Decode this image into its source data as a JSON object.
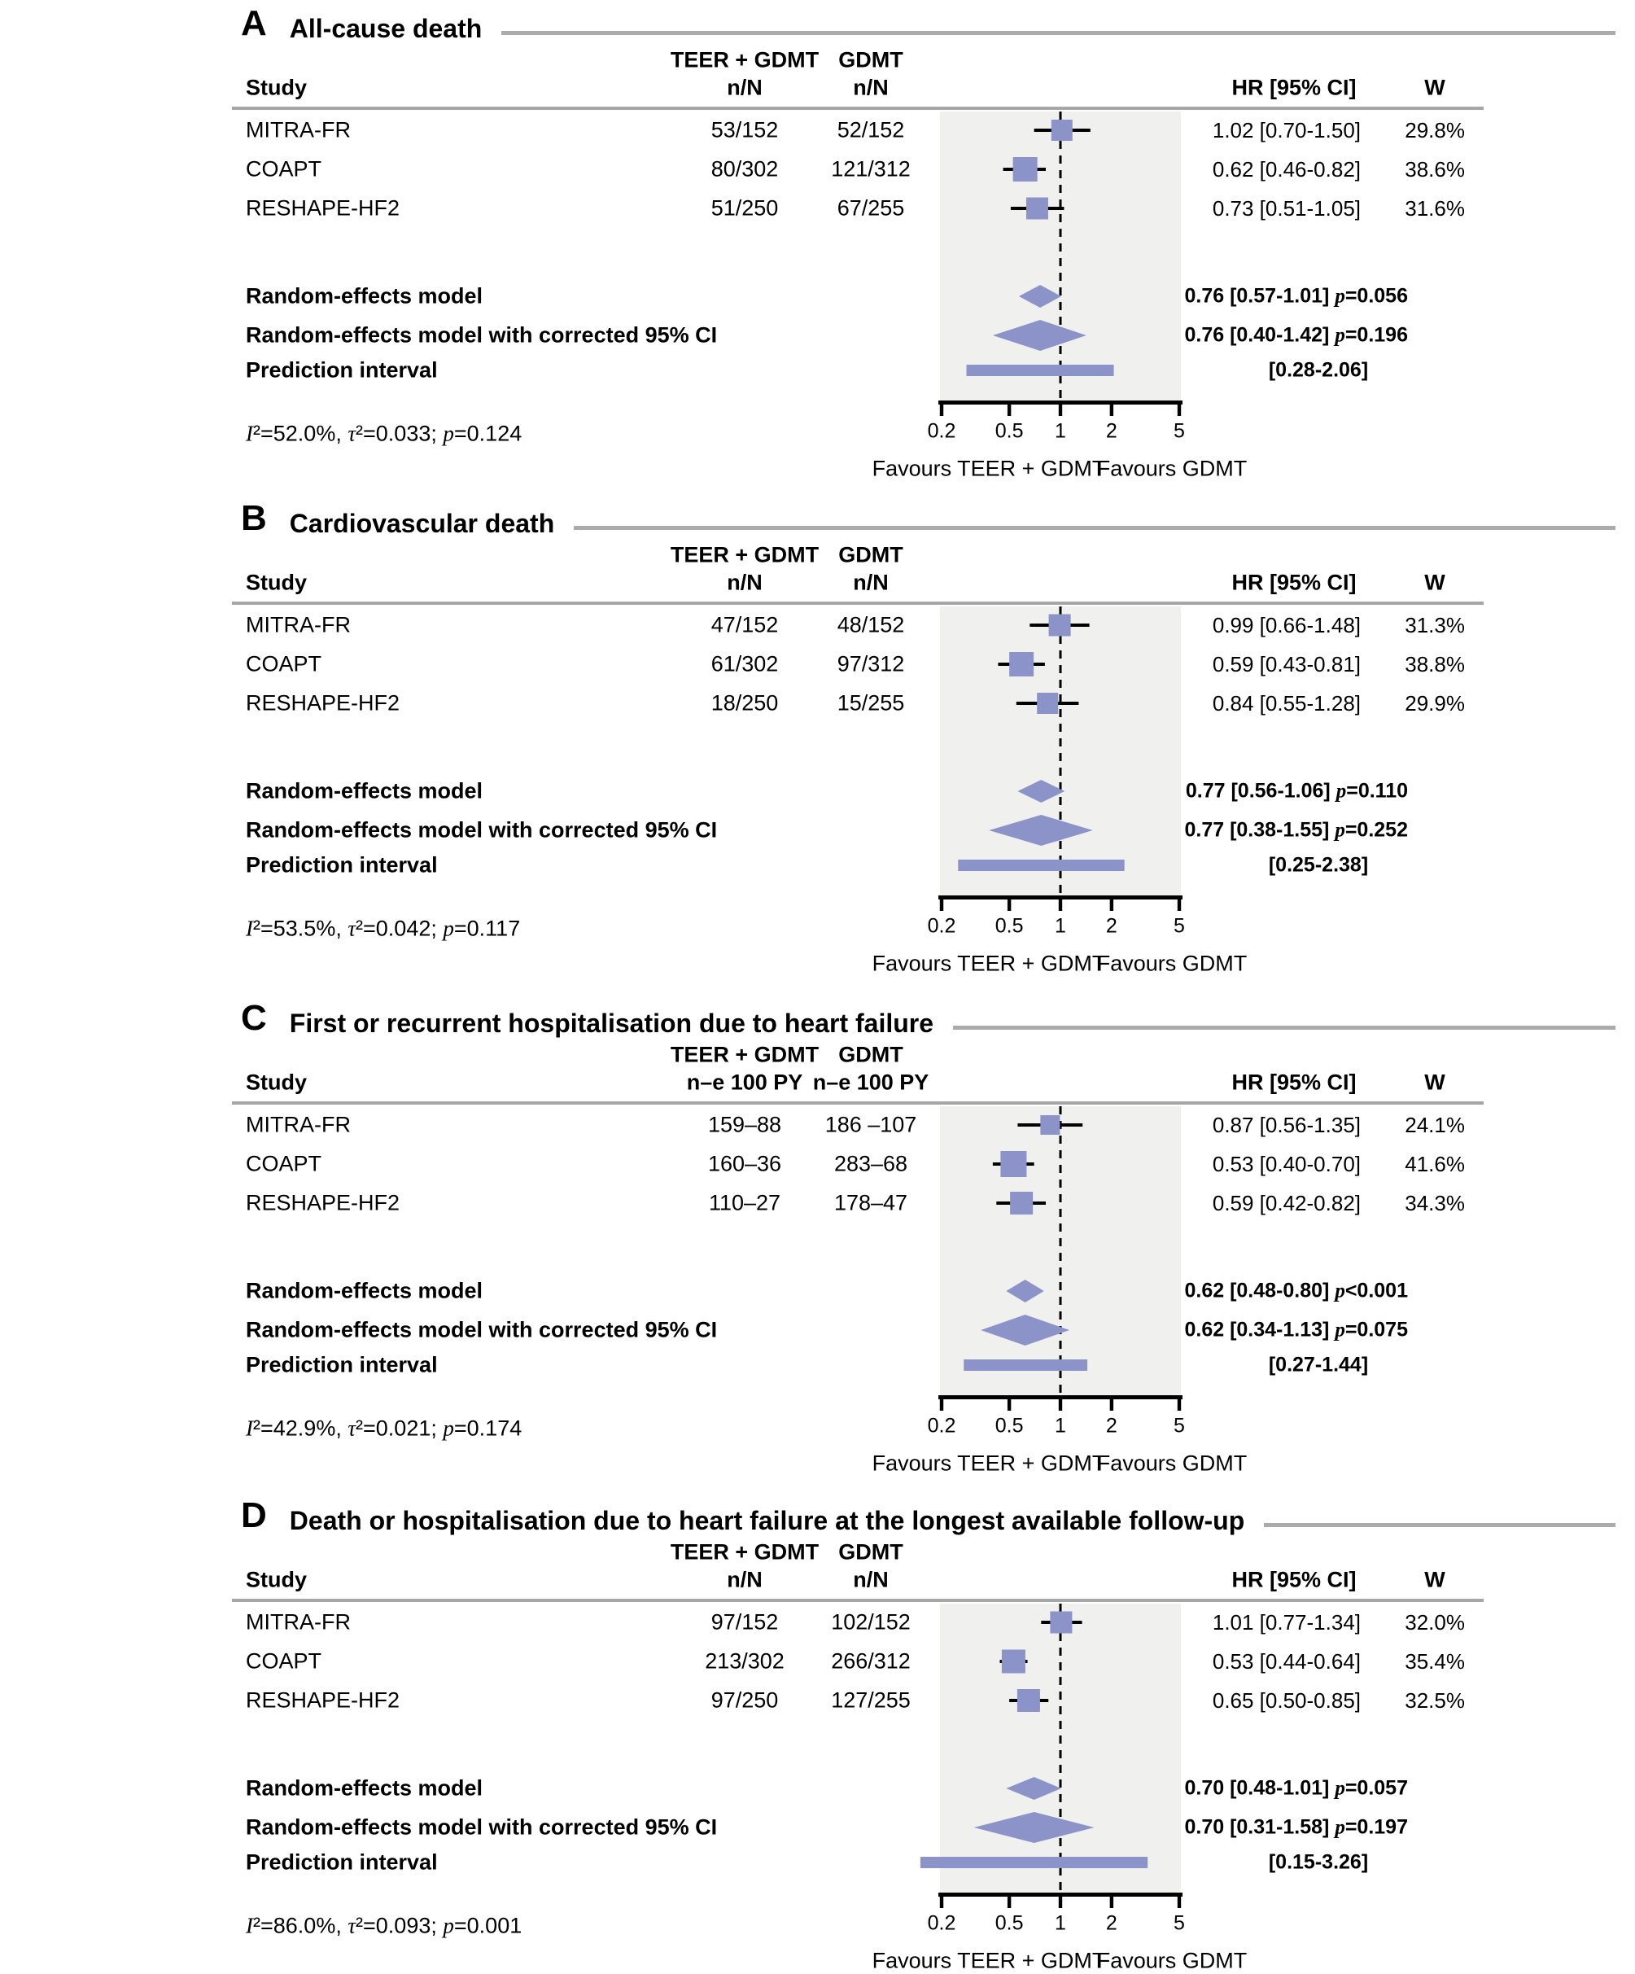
{
  "shared": {
    "study_header": "Study",
    "group1_header": "TEER + GDMT",
    "group2_header": "GDMT",
    "hr_header": "HR [95% CI]",
    "weight_header": "W",
    "rem_label": "Random-effects model",
    "rem_corr_label": "Random-effects model with corrected 95% CI",
    "pred_label": "Prediction interval",
    "favours_left": "Favours TEER + GDMT",
    "favours_right": "Favours GDMT",
    "sym_I": "I",
    "sym_tau": "τ",
    "sym_p": "p",
    "sup_eq": "²=",
    "comma": ", ",
    "semi": "; ",
    "space": " ",
    "colors": {
      "marker": "#8b93c8",
      "plot_background": "#f0f0ee",
      "rule_gray": "#a6a6a6",
      "axis_black": "#000000"
    }
  },
  "chart_data": {
    "type": "forest",
    "x_scale": "log",
    "x_ticks": [
      0.2,
      0.5,
      1,
      2,
      5
    ],
    "x_tick_labels": [
      "0.2",
      "0.5",
      "1",
      "2",
      "5"
    ],
    "null_line": 1,
    "panels": [
      {
        "letter": "A",
        "title": "All-cause death",
        "unit_label": "n/N",
        "rows": [
          {
            "study": "MITRA-FR",
            "g1": "53/152",
            "g2": "52/152",
            "hr": 1.02,
            "lo": 0.7,
            "hi": 1.5,
            "hr_text": "1.02 [0.70-1.50]",
            "w": "29.8%",
            "weight": 29.8
          },
          {
            "study": "COAPT",
            "g1": "80/302",
            "g2": "121/312",
            "hr": 0.62,
            "lo": 0.46,
            "hi": 0.82,
            "hr_text": "0.62 [0.46-0.82]",
            "w": "38.6%",
            "weight": 38.6
          },
          {
            "study": "RESHAPE-HF2",
            "g1": "51/250",
            "g2": "67/255",
            "hr": 0.73,
            "lo": 0.51,
            "hi": 1.05,
            "hr_text": "0.73 [0.51-1.05]",
            "w": "31.6%",
            "weight": 31.6
          }
        ],
        "rem": {
          "hr": 0.76,
          "lo": 0.57,
          "hi": 1.01,
          "text": "0.76 [0.57-1.01]",
          "p": "=0.056"
        },
        "rem_corr": {
          "hr": 0.76,
          "lo": 0.4,
          "hi": 1.42,
          "text": "0.76 [0.40-1.42]",
          "p": "=0.196"
        },
        "pred": {
          "lo": 0.28,
          "hi": 2.06,
          "text": "[0.28-2.06]"
        },
        "het": {
          "i2": "52.0%",
          "tau2": "0.033",
          "p": "0.124"
        }
      },
      {
        "letter": "B",
        "title": "Cardiovascular death",
        "unit_label": "n/N",
        "rows": [
          {
            "study": "MITRA-FR",
            "g1": "47/152",
            "g2": "48/152",
            "hr": 0.99,
            "lo": 0.66,
            "hi": 1.48,
            "hr_text": "0.99 [0.66-1.48]",
            "w": "31.3%",
            "weight": 31.3
          },
          {
            "study": "COAPT",
            "g1": "61/302",
            "g2": "97/312",
            "hr": 0.59,
            "lo": 0.43,
            "hi": 0.81,
            "hr_text": "0.59 [0.43-0.81]",
            "w": "38.8%",
            "weight": 38.8
          },
          {
            "study": "RESHAPE-HF2",
            "g1": "18/250",
            "g2": "15/255",
            "hr": 0.84,
            "lo": 0.55,
            "hi": 1.28,
            "hr_text": "0.84 [0.55-1.28]",
            "w": "29.9%",
            "weight": 29.9
          }
        ],
        "rem": {
          "hr": 0.77,
          "lo": 0.56,
          "hi": 1.06,
          "text": "0.77 [0.56-1.06]",
          "p": "=0.110"
        },
        "rem_corr": {
          "hr": 0.77,
          "lo": 0.38,
          "hi": 1.55,
          "text": "0.77 [0.38-1.55]",
          "p": "=0.252"
        },
        "pred": {
          "lo": 0.25,
          "hi": 2.38,
          "text": "[0.25-2.38]"
        },
        "het": {
          "i2": "53.5%",
          "tau2": "0.042",
          "p": "0.117"
        }
      },
      {
        "letter": "C",
        "title": "First or recurrent hospitalisation due to heart failure",
        "unit_label": "n–e 100 PY",
        "rows": [
          {
            "study": "MITRA-FR",
            "g1": "159–88",
            "g2": "186 –107",
            "hr": 0.87,
            "lo": 0.56,
            "hi": 1.35,
            "hr_text": "0.87 [0.56-1.35]",
            "w": "24.1%",
            "weight": 24.1
          },
          {
            "study": "COAPT",
            "g1": "160–36",
            "g2": "283–68",
            "hr": 0.53,
            "lo": 0.4,
            "hi": 0.7,
            "hr_text": "0.53 [0.40-0.70]",
            "w": "41.6%",
            "weight": 41.6
          },
          {
            "study": "RESHAPE-HF2",
            "g1": "110–27",
            "g2": "178–47",
            "hr": 0.59,
            "lo": 0.42,
            "hi": 0.82,
            "hr_text": "0.59 [0.42-0.82]",
            "w": "34.3%",
            "weight": 34.3
          }
        ],
        "rem": {
          "hr": 0.62,
          "lo": 0.48,
          "hi": 0.8,
          "text": "0.62 [0.48-0.80]",
          "p": "<0.001"
        },
        "rem_corr": {
          "hr": 0.62,
          "lo": 0.34,
          "hi": 1.13,
          "text": "0.62 [0.34-1.13]",
          "p": "=0.075"
        },
        "pred": {
          "lo": 0.27,
          "hi": 1.44,
          "text": "[0.27-1.44]"
        },
        "het": {
          "i2": "42.9%",
          "tau2": "0.021",
          "p": "0.174"
        }
      },
      {
        "letter": "D",
        "title": "Death or hospitalisation due to heart failure at the longest available follow-up",
        "unit_label": "n/N",
        "rows": [
          {
            "study": "MITRA-FR",
            "g1": "97/152",
            "g2": "102/152",
            "hr": 1.01,
            "lo": 0.77,
            "hi": 1.34,
            "hr_text": "1.01 [0.77-1.34]",
            "w": "32.0%",
            "weight": 32.0
          },
          {
            "study": "COAPT",
            "g1": "213/302",
            "g2": "266/312",
            "hr": 0.53,
            "lo": 0.44,
            "hi": 0.64,
            "hr_text": "0.53 [0.44-0.64]",
            "w": "35.4%",
            "weight": 35.4
          },
          {
            "study": "RESHAPE-HF2",
            "g1": "97/250",
            "g2": "127/255",
            "hr": 0.65,
            "lo": 0.5,
            "hi": 0.85,
            "hr_text": "0.65 [0.50-0.85]",
            "w": "32.5%",
            "weight": 32.5
          }
        ],
        "rem": {
          "hr": 0.7,
          "lo": 0.48,
          "hi": 1.01,
          "text": "0.70 [0.48-1.01]",
          "p": "=0.057"
        },
        "rem_corr": {
          "hr": 0.7,
          "lo": 0.31,
          "hi": 1.58,
          "text": "0.70 [0.31-1.58]",
          "p": "=0.197"
        },
        "pred": {
          "lo": 0.15,
          "hi": 3.26,
          "text": "[0.15-3.26]"
        },
        "het": {
          "i2": "86.0%",
          "tau2": "0.093",
          "p": "0.001"
        }
      }
    ]
  }
}
